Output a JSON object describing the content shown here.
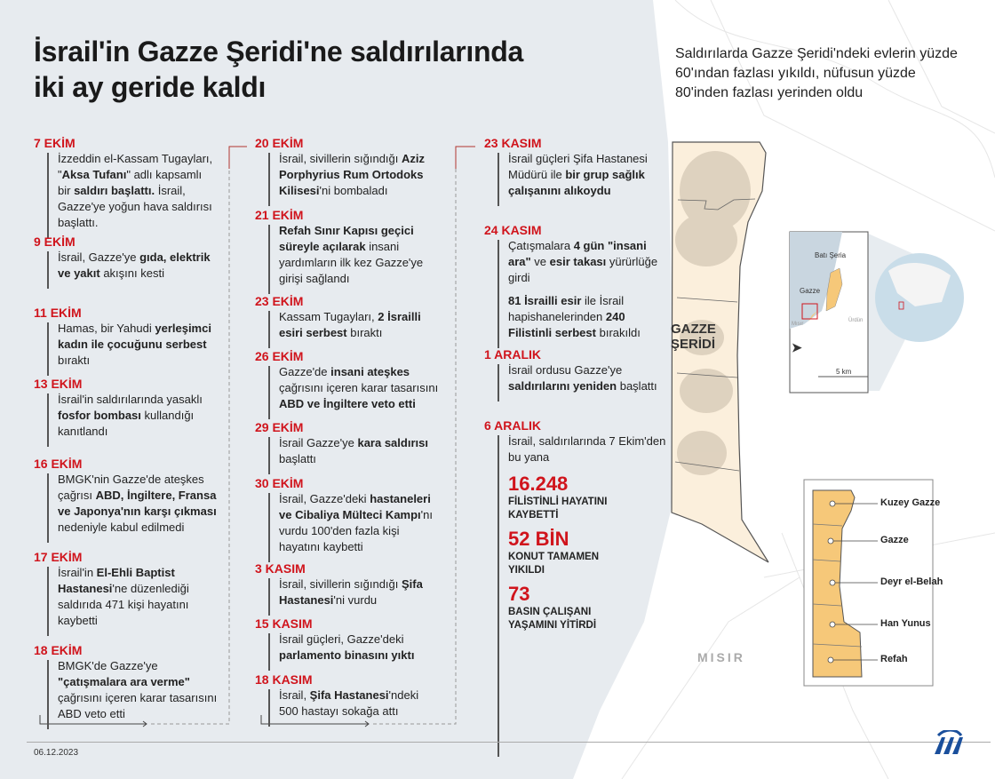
{
  "title": {
    "line1": "İsrail'in Gazze Şeridi'ne saldırılarında",
    "line2": "iki ay geride kaldı"
  },
  "subtitle": "Saldırılarda Gazze Şeridi'ndeki evlerin yüzde 60'ından fazlası yıkıldı, nüfusun yüzde 80'inden fazlası yerinden oldu",
  "colors": {
    "accent": "#d0141c",
    "panel": "#e7ebef",
    "strip": "#fbefdc",
    "region": "#f6c879"
  },
  "timeline": [
    [
      {
        "date": "7 EKİM",
        "paras": [
          [
            {
              "t": "İzzeddin el-Kassam Tugayları, \""
            },
            {
              "t": "Aksa Tufanı",
              "b": true
            },
            {
              "t": "\" adlı kapsamlı bir "
            },
            {
              "t": "saldırı başlattı.",
              "b": true
            },
            {
              "t": " İsrail, Gazze'ye yoğun hava saldırısı başlattı."
            }
          ]
        ]
      },
      {
        "date": "9 EKİM",
        "paras": [
          [
            {
              "t": "İsrail, Gazze'ye "
            },
            {
              "t": "gıda, elektrik ve yakıt",
              "b": true
            },
            {
              "t": " akışını kesti"
            }
          ]
        ]
      },
      {
        "date": "11 EKİM",
        "paras": [
          [
            {
              "t": "Hamas, bir Yahudi "
            },
            {
              "t": "yerleşimci kadın ile çocuğunu serbest",
              "b": true
            },
            {
              "t": " bıraktı"
            }
          ]
        ]
      },
      {
        "date": "13 EKİM",
        "paras": [
          [
            {
              "t": "İsrail'in saldırılarında yasaklı "
            },
            {
              "t": "fosfor bombası",
              "b": true
            },
            {
              "t": " kullandığı kanıtlandı"
            }
          ]
        ]
      },
      {
        "date": "16 EKİM",
        "paras": [
          [
            {
              "t": "BMGK'nin Gazze'de ateşkes çağrısı "
            },
            {
              "t": "ABD, İngiltere, Fransa ve Japonya'nın karşı çıkması",
              "b": true
            },
            {
              "t": " nedeniyle kabul edilmedi"
            }
          ]
        ]
      },
      {
        "date": "17 EKİM",
        "paras": [
          [
            {
              "t": "İsrail'in "
            },
            {
              "t": "El-Ehli Baptist Hastanesi",
              "b": true
            },
            {
              "t": "'ne düzenlediği saldırıda 471 kişi hayatını kaybetti"
            }
          ]
        ]
      },
      {
        "date": "18 EKİM",
        "paras": [
          [
            {
              "t": "BMGK'de Gazze'ye "
            },
            {
              "t": "\"çatışmalara ara verme\"",
              "b": true
            },
            {
              "t": " çağrısını içeren karar tasarısını ABD veto etti"
            }
          ]
        ]
      }
    ],
    [
      {
        "date": "20 EKİM",
        "paras": [
          [
            {
              "t": "İsrail, sivillerin sığındığı "
            },
            {
              "t": "Aziz Porphyrius Rum Ortodoks Kilisesi",
              "b": true
            },
            {
              "t": "'ni bombaladı"
            }
          ]
        ]
      },
      {
        "date": "21 EKİM",
        "paras": [
          [
            {
              "t": "Refah Sınır Kapısı geçici süreyle açılarak",
              "b": true
            },
            {
              "t": " insani yardımların ilk kez Gazze'ye girişi sağlandı"
            }
          ]
        ]
      },
      {
        "date": "23 EKİM",
        "paras": [
          [
            {
              "t": "Kassam Tugayları, "
            },
            {
              "t": "2 İsrailli esiri serbest",
              "b": true
            },
            {
              "t": " bıraktı"
            }
          ]
        ]
      },
      {
        "date": "26 EKİM",
        "paras": [
          [
            {
              "t": "Gazze'de "
            },
            {
              "t": "insani ateşkes",
              "b": true
            },
            {
              "t": " çağrısını içeren karar tasarısını "
            },
            {
              "t": "ABD ve İngiltere veto etti",
              "b": true
            }
          ]
        ]
      },
      {
        "date": "29 EKİM",
        "paras": [
          [
            {
              "t": "İsrail Gazze'ye "
            },
            {
              "t": "kara saldırısı",
              "b": true
            },
            {
              "t": " başlattı"
            }
          ]
        ]
      },
      {
        "date": "30 EKİM",
        "paras": [
          [
            {
              "t": "İsrail, Gazze'deki "
            },
            {
              "t": "hastaneleri ve Cibaliya Mülteci Kampı",
              "b": true
            },
            {
              "t": "'nı vurdu 100'den fazla kişi hayatını kaybetti"
            }
          ]
        ]
      },
      {
        "date": "3 KASIM",
        "paras": [
          [
            {
              "t": "İsrail, sivillerin sığındığı "
            },
            {
              "t": "Şifa Hastanesi",
              "b": true
            },
            {
              "t": "'ni vurdu"
            }
          ]
        ]
      },
      {
        "date": "15 KASIM",
        "paras": [
          [
            {
              "t": "İsrail güçleri, Gazze'deki "
            },
            {
              "t": "parlamento binasını yıktı",
              "b": true
            }
          ]
        ]
      },
      {
        "date": "18 KASIM",
        "paras": [
          [
            {
              "t": "İsrail, "
            },
            {
              "t": "Şifa Hastanesi",
              "b": true
            },
            {
              "t": "'ndeki 500 hastayı sokağa attı"
            }
          ]
        ]
      }
    ],
    [
      {
        "date": "23 KASIM",
        "paras": [
          [
            {
              "t": "İsrail güçleri Şifa Hastanesi Müdürü ile "
            },
            {
              "t": "bir grup sağlık çalışanını alıkoydu",
              "b": true
            }
          ]
        ]
      },
      {
        "date": "24 KASIM",
        "paras": [
          [
            {
              "t": "Çatışmalara "
            },
            {
              "t": "4 gün \"insani ara\"",
              "b": true
            },
            {
              "t": " ve "
            },
            {
              "t": "esir takası",
              "b": true
            },
            {
              "t": " yürürlüğe girdi"
            }
          ],
          [
            {
              "t": "81 İsrailli esir",
              "b": true
            },
            {
              "t": " ile İsrail hapishanelerinden "
            },
            {
              "t": "240 Filistinli serbest",
              "b": true
            },
            {
              "t": " bırakıldı"
            }
          ]
        ]
      },
      {
        "date": "1 ARALIK",
        "paras": [
          [
            {
              "t": "İsrail ordusu Gazze'ye "
            },
            {
              "t": "saldırılarını yeniden",
              "b": true
            },
            {
              "t": " başlattı"
            }
          ]
        ]
      },
      {
        "date": "6 ARALIK",
        "paras": [
          [
            {
              "t": "İsrail, saldırılarında 7 Ekim'den bu yana"
            }
          ]
        ],
        "stats": [
          {
            "value": "16.248",
            "label": "FİLİSTİNLİ HAYATINI KAYBETTİ"
          },
          {
            "value": "52 BİN",
            "label": "KONUT TAMAMEN YIKILDI"
          },
          {
            "value": "73",
            "label": "BASIN ÇALIŞANI YAŞAMINI YİTİRDİ"
          }
        ]
      }
    ]
  ],
  "map": {
    "strip_label": "GAZZE ŞERİDİ",
    "egypt_label": "MISIR",
    "inset": {
      "west_bank": "Batı Şeria",
      "gaza": "Gazze",
      "egypt": "Mısır",
      "jordan": "Ürdün",
      "scale": "5 km",
      "north_icon": "north-arrow-icon"
    },
    "regions": [
      "Kuzey Gazze",
      "Gazze",
      "Deyr el-Belah",
      "Han Yunus",
      "Refah"
    ]
  },
  "footer": {
    "date": "06.12.2023",
    "logo": "AA"
  }
}
